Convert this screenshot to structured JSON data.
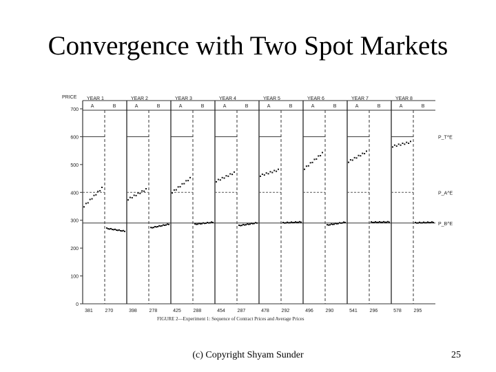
{
  "slide": {
    "title": "Convergence with Two Spot Markets",
    "footer": "(c) Copyright Shyam Sunder",
    "page_number": "25"
  },
  "chart_data": {
    "type": "scatter",
    "title": "",
    "ylabel": "PRICE",
    "ylim": [
      0,
      700
    ],
    "y_ticks": [
      0,
      100,
      200,
      300,
      400,
      500,
      600,
      700
    ],
    "y_tick_labels": [
      "0",
      "100",
      "200",
      "300",
      "400",
      "500",
      "600",
      "700"
    ],
    "caption": "FIGURE 2—Experiment 1: Sequence of Contract Prices and Average Prices",
    "equilibria": [
      {
        "label": "P_T^E",
        "value": 600
      },
      {
        "label": "P_A^E",
        "value": 400
      },
      {
        "label": "P_B^E",
        "value": 290
      }
    ],
    "years": [
      {
        "label": "YEAR 1",
        "markets": [
          "A",
          "B"
        ],
        "avg_a": "381",
        "avg_b": "270",
        "a_start": 350,
        "a_end": 415,
        "b_start": 270,
        "b_end": 260
      },
      {
        "label": "YEAR 2",
        "markets": [
          "A",
          "B"
        ],
        "avg_a": "398",
        "avg_b": "278",
        "a_start": 375,
        "a_end": 410,
        "b_start": 272,
        "b_end": 285
      },
      {
        "label": "YEAR 3",
        "markets": [
          "A",
          "B"
        ],
        "avg_a": "425",
        "avg_b": "288",
        "a_start": 400,
        "a_end": 450,
        "b_start": 285,
        "b_end": 292
      },
      {
        "label": "YEAR 4",
        "markets": [
          "A",
          "B"
        ],
        "avg_a": "454",
        "avg_b": "287",
        "a_start": 440,
        "a_end": 470,
        "b_start": 280,
        "b_end": 290
      },
      {
        "label": "YEAR 5",
        "markets": [
          "A",
          "B"
        ],
        "avg_a": "478",
        "avg_b": "292",
        "a_start": 460,
        "a_end": 480,
        "b_start": 290,
        "b_end": 293
      },
      {
        "label": "YEAR 6",
        "markets": [
          "A",
          "B"
        ],
        "avg_a": "496",
        "avg_b": "290",
        "a_start": 485,
        "a_end": 540,
        "b_start": 282,
        "b_end": 292
      },
      {
        "label": "YEAR 7",
        "markets": [
          "A",
          "B"
        ],
        "avg_a": "541",
        "avg_b": "296",
        "a_start": 510,
        "a_end": 545,
        "b_start": 292,
        "b_end": 293
      },
      {
        "label": "YEAR 8",
        "markets": [
          "A",
          "B"
        ],
        "avg_a": "578",
        "avg_b": "295",
        "a_start": 565,
        "a_end": 580,
        "b_start": 290,
        "b_end": 292
      }
    ]
  }
}
